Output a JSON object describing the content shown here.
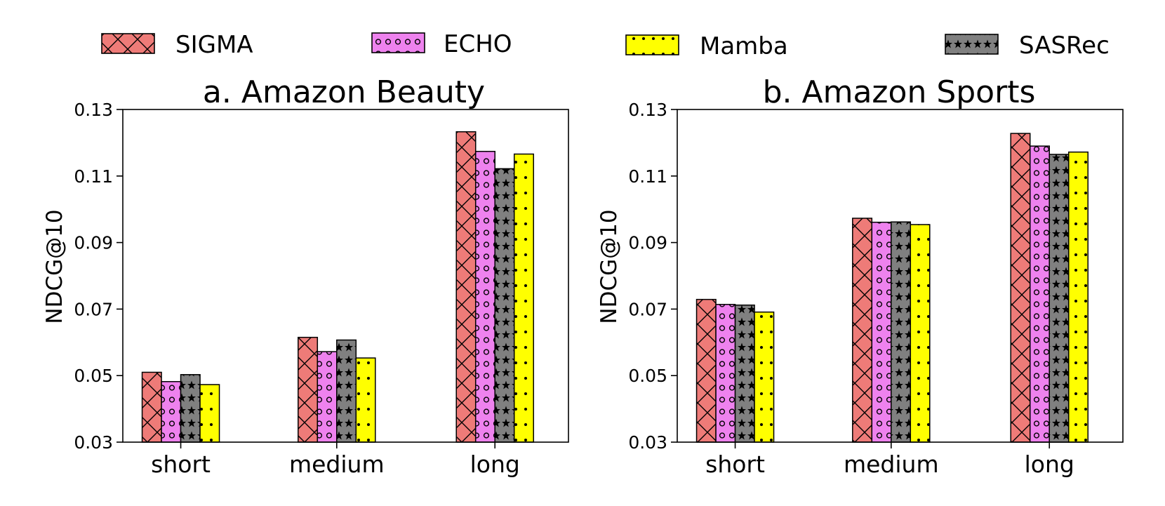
{
  "legend": [
    {
      "name": "SIGMA",
      "color": "#ee7b78",
      "pattern": "cross"
    },
    {
      "name": "ECHO",
      "color": "#ee82ee",
      "pattern": "circle"
    },
    {
      "name": "Mamba",
      "color": "#ffff00",
      "pattern": "dot"
    },
    {
      "name": "SASRec",
      "color": "#808080",
      "pattern": "star"
    }
  ],
  "chart_data": [
    {
      "type": "bar",
      "title": "a. Amazon Beauty",
      "xlabel": "",
      "ylabel": "NDCG@10",
      "ylim": [
        0.03,
        0.13
      ],
      "yticks": [
        "0.03",
        "0.05",
        "0.07",
        "0.09",
        "0.11",
        "0.13"
      ],
      "categories": [
        "short",
        "medium",
        "long"
      ],
      "series": [
        {
          "name": "SIGMA",
          "values": [
            0.051,
            0.0615,
            0.1233
          ]
        },
        {
          "name": "ECHO",
          "values": [
            0.0482,
            0.0572,
            0.1174
          ]
        },
        {
          "name": "SASRec",
          "values": [
            0.0503,
            0.0607,
            0.1122
          ]
        },
        {
          "name": "Mamba",
          "values": [
            0.0473,
            0.0553,
            0.1166
          ]
        }
      ]
    },
    {
      "type": "bar",
      "title": "b. Amazon Sports",
      "xlabel": "",
      "ylabel": "NDCG@10",
      "ylim": [
        0.03,
        0.13
      ],
      "yticks": [
        "0.03",
        "0.05",
        "0.07",
        "0.09",
        "0.11",
        "0.13"
      ],
      "categories": [
        "short",
        "medium",
        "long"
      ],
      "series": [
        {
          "name": "SIGMA",
          "values": [
            0.0729,
            0.0973,
            0.1228
          ]
        },
        {
          "name": "ECHO",
          "values": [
            0.0714,
            0.0961,
            0.119
          ]
        },
        {
          "name": "SASRec",
          "values": [
            0.0712,
            0.0962,
            0.1165
          ]
        },
        {
          "name": "Mamba",
          "values": [
            0.0691,
            0.0954,
            0.1172
          ]
        }
      ]
    }
  ]
}
